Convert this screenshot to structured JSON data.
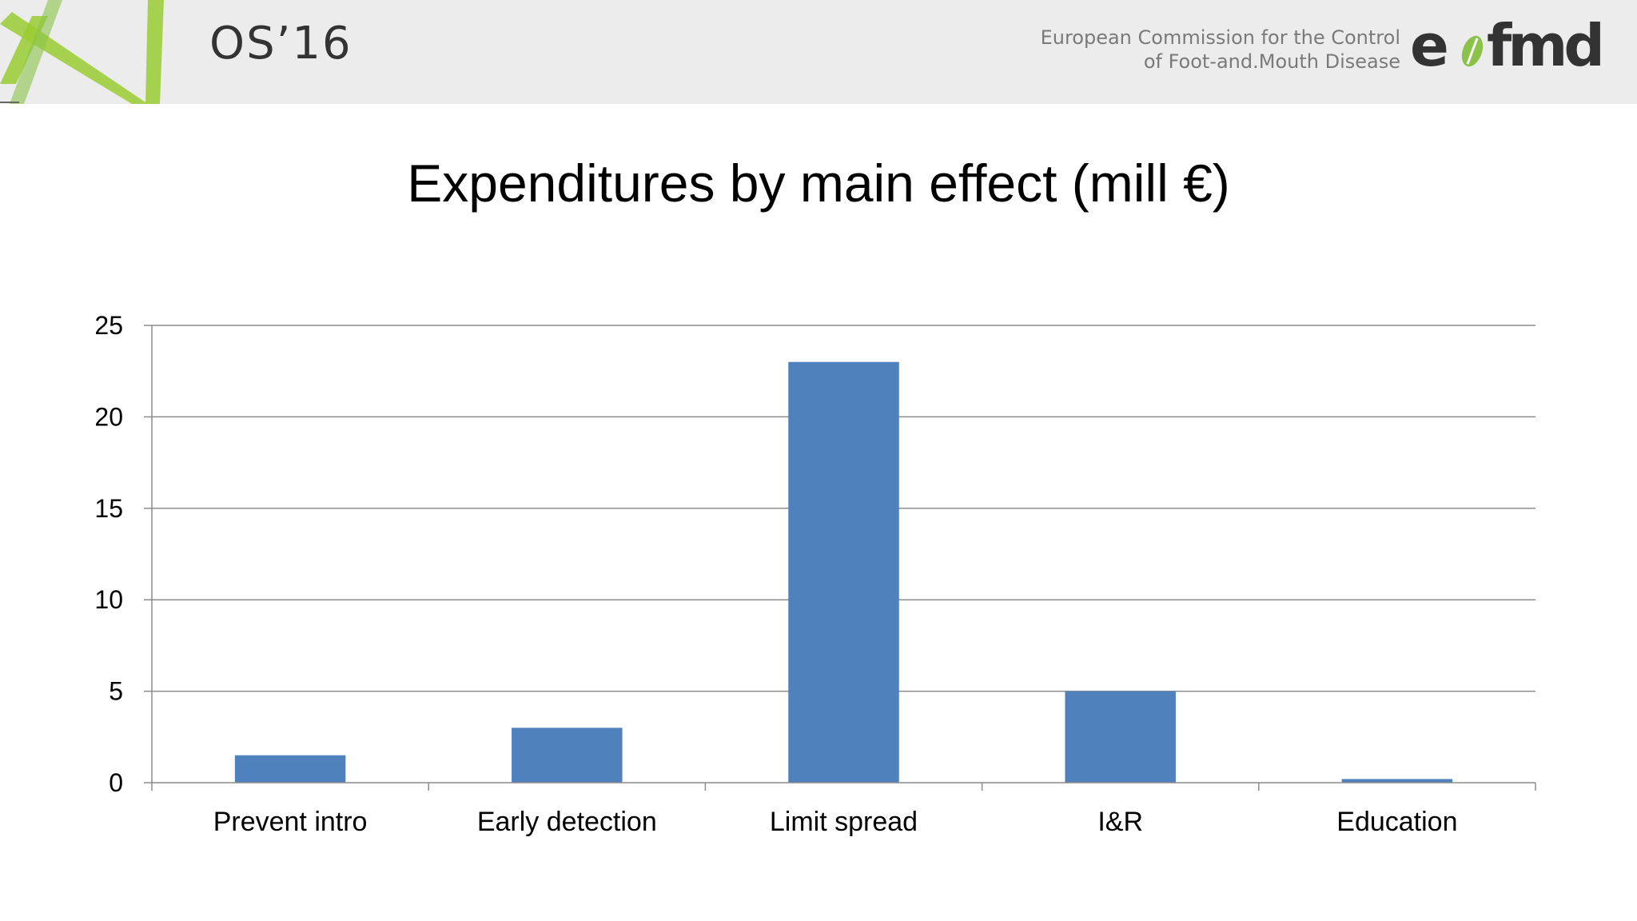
{
  "header": {
    "event": "OS’16",
    "org_line1": "European Commission for the Control",
    "org_line2": "of Foot-and.Mouth Disease",
    "logo_text": "eufmd",
    "logo_icon": "leaf-icon"
  },
  "colors": {
    "bar": "#4f81bd",
    "grid": "#8c8c8c",
    "header_bg": "#ececec",
    "deco_green": "#9acd32"
  },
  "chart_data": {
    "type": "bar",
    "title": "Expenditures by main effect (mill €)",
    "xlabel": "",
    "ylabel": "",
    "categories": [
      "Prevent intro",
      "Early detection",
      "Limit spread",
      "I&R",
      "Education"
    ],
    "values": [
      1.5,
      3,
      23,
      5,
      0.2
    ],
    "ylim": [
      0,
      25
    ],
    "yticks": [
      0,
      5,
      10,
      15,
      20,
      25
    ],
    "grid": true,
    "legend": "none"
  }
}
